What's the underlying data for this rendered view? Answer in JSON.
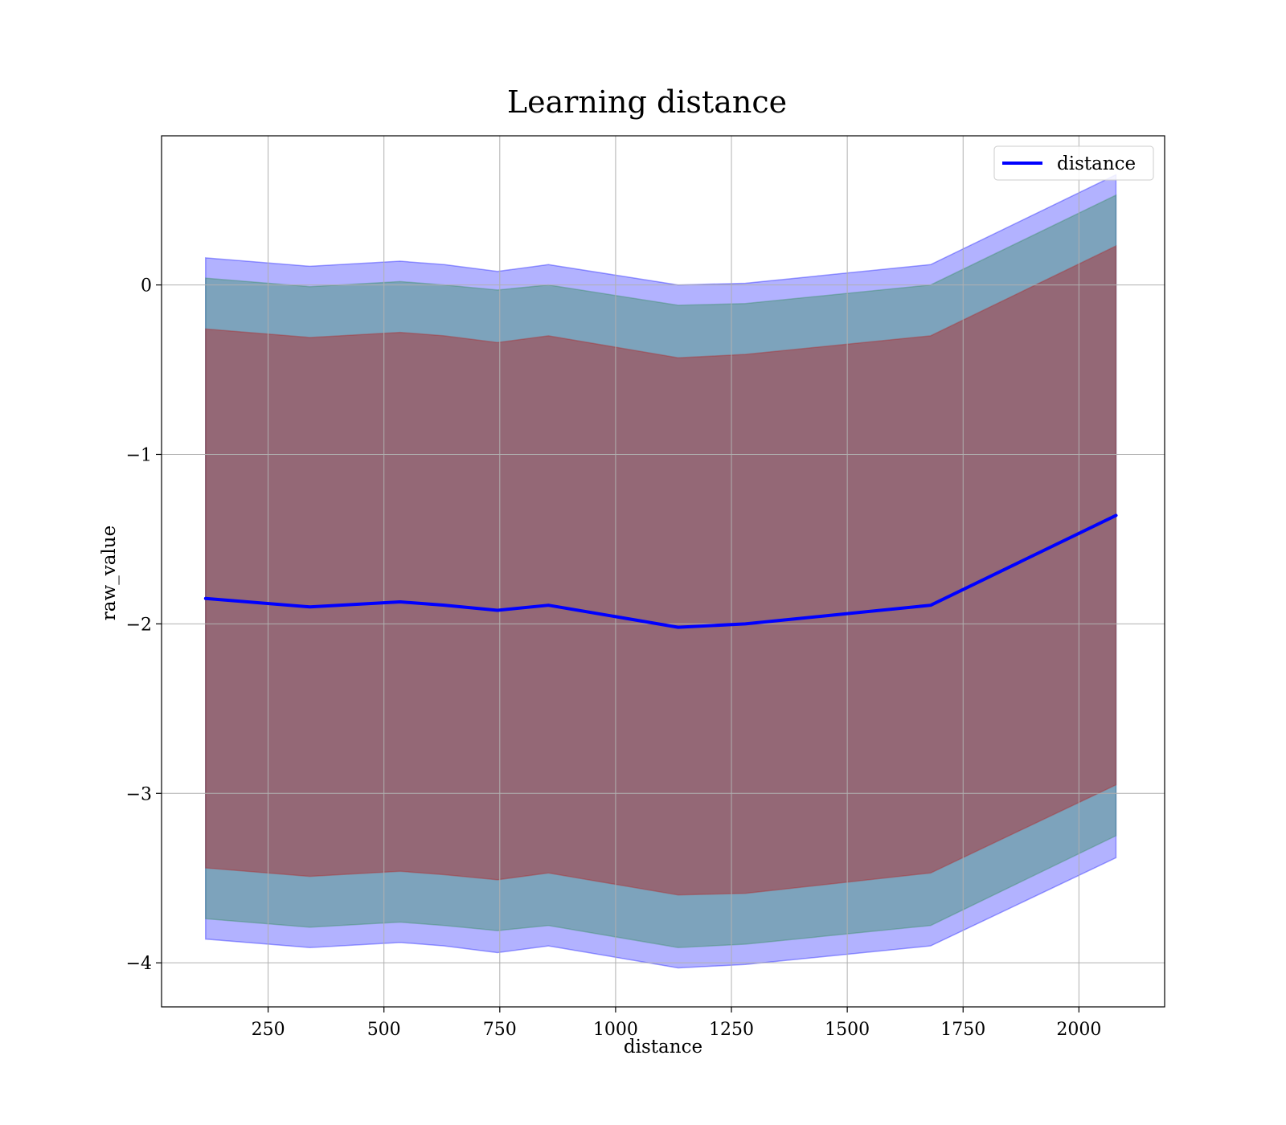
{
  "chart_data": {
    "type": "line",
    "title": "Learning distance",
    "xlabel": "distance",
    "ylabel": "raw_value",
    "xlim": [
      20,
      2185
    ],
    "ylim": [
      -4.26,
      0.88
    ],
    "xticks": [
      250,
      500,
      750,
      1000,
      1250,
      1500,
      1750,
      2000
    ],
    "xtick_labels": [
      "250",
      "500",
      "750",
      "1000",
      "1250",
      "1500",
      "1750",
      "2000"
    ],
    "yticks": [
      0,
      -1,
      -2,
      -3,
      -4
    ],
    "ytick_labels": [
      "0",
      "−1",
      "−2",
      "−3",
      "−4"
    ],
    "grid": true,
    "legend": {
      "placement": "top-right",
      "entries": [
        {
          "label": "distance",
          "color": "#0000ff"
        }
      ]
    },
    "x": [
      115,
      340,
      535,
      630,
      745,
      855,
      1135,
      1280,
      1680,
      2080
    ],
    "series": [
      {
        "name": "distance",
        "color": "#0000ff",
        "values": [
          -1.85,
          -1.9,
          -1.87,
          -1.89,
          -1.92,
          -1.89,
          -2.02,
          -2.0,
          -1.89,
          -1.36
        ]
      }
    ],
    "bands": [
      {
        "color": "#0000ff",
        "opacity": 0.3,
        "upper": [
          0.16,
          0.11,
          0.14,
          0.12,
          0.08,
          0.12,
          0.0,
          0.01,
          0.12,
          0.65
        ],
        "lower": [
          -3.86,
          -3.91,
          -3.88,
          -3.9,
          -3.94,
          -3.9,
          -4.03,
          -4.01,
          -3.9,
          -3.38
        ]
      },
      {
        "color": "#2e8b57",
        "opacity": 0.4,
        "upper": [
          0.04,
          -0.01,
          0.02,
          0.0,
          -0.03,
          0.0,
          -0.12,
          -0.11,
          0.0,
          0.53
        ],
        "lower": [
          -3.74,
          -3.79,
          -3.76,
          -3.78,
          -3.81,
          -3.78,
          -3.91,
          -3.89,
          -3.78,
          -3.25
        ]
      },
      {
        "color": "#b22222",
        "opacity": 0.45,
        "upper": [
          -0.26,
          -0.31,
          -0.28,
          -0.3,
          -0.34,
          -0.3,
          -0.43,
          -0.41,
          -0.3,
          0.23
        ],
        "lower": [
          -3.44,
          -3.49,
          -3.46,
          -3.48,
          -3.51,
          -3.47,
          -3.6,
          -3.59,
          -3.47,
          -2.95
        ]
      }
    ]
  }
}
